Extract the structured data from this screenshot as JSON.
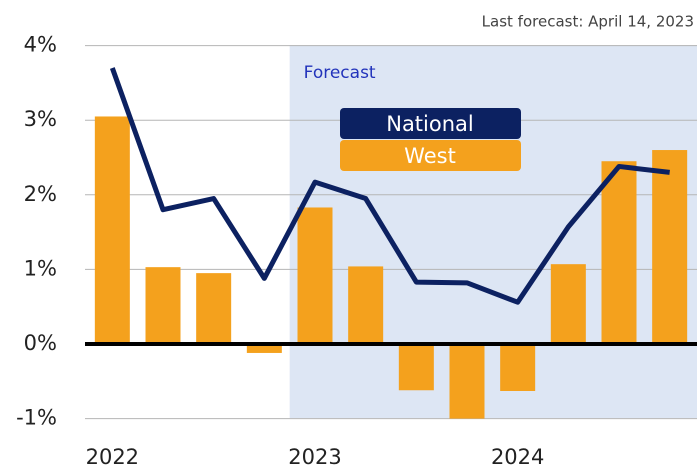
{
  "chart_data": {
    "type": "combo",
    "subtitle": "Last forecast: April 14, 2023",
    "categories": [
      "2022",
      null,
      null,
      null,
      "2023",
      null,
      null,
      null,
      "2024",
      null,
      null,
      null
    ],
    "series": [
      {
        "name": "National",
        "type": "line",
        "color": "#0c2161",
        "values": [
          3.7,
          1.8,
          1.95,
          0.88,
          2.17,
          1.95,
          0.83,
          0.82,
          0.56,
          1.57,
          2.38,
          2.3
        ]
      },
      {
        "name": "West",
        "type": "bar",
        "color": "#f4a11d",
        "values": [
          3.05,
          1.03,
          0.95,
          -0.12,
          1.83,
          1.04,
          -0.62,
          -1.0,
          -0.63,
          1.07,
          2.45,
          2.6
        ]
      }
    ],
    "forecast": {
      "label": "Forecast",
      "start": "2023",
      "color": "#dde6f4"
    },
    "ylim": [
      -1.35,
      4
    ],
    "yticks": [
      {
        "value": -1,
        "label": "-1%"
      },
      {
        "value": 0,
        "label": "0%"
      },
      {
        "value": 1,
        "label": "1%"
      },
      {
        "value": 2,
        "label": "2%"
      },
      {
        "value": 3,
        "label": "3%"
      },
      {
        "value": 4,
        "label": "4%"
      }
    ],
    "grid": true
  }
}
